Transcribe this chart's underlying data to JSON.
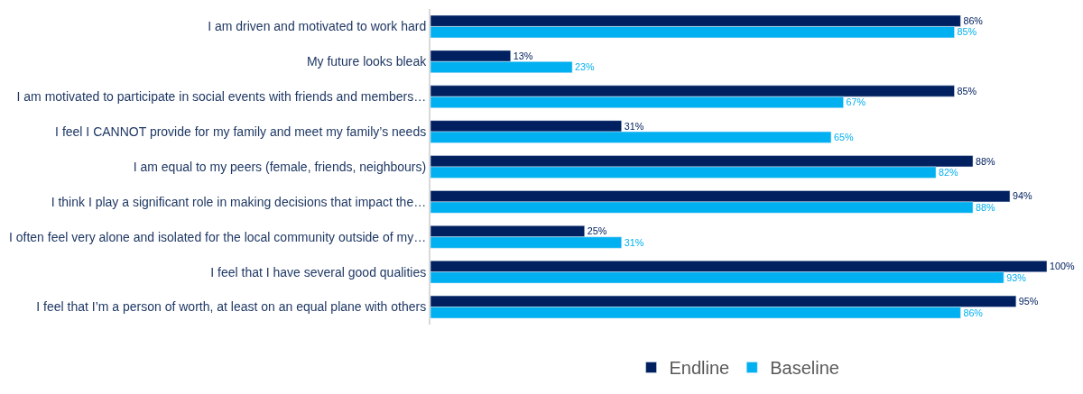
{
  "chart_data": {
    "type": "bar",
    "orientation": "horizontal",
    "categories": [
      "I am driven and motivated to work hard",
      "My future looks bleak",
      "I am motivated to participate in social events with friends and members…",
      "I feel I CANNOT provide for my family and meet my family’s needs",
      "I am equal to my peers (female, friends, neighbours)",
      "I think I play a significant role in making decisions that impact the…",
      "I often feel very alone and isolated for the local community outside of my…",
      "I feel that I have several good qualities",
      "I feel that I’m a person of worth, at least on an equal plane with others"
    ],
    "series": [
      {
        "name": "Endline",
        "color": "#002060",
        "values": [
          86,
          13,
          85,
          31,
          88,
          94,
          25,
          100,
          95
        ],
        "value_labels": [
          "86%",
          "13%",
          "85%",
          "31%",
          "88%",
          "94%",
          "25%",
          "100%",
          "95%"
        ]
      },
      {
        "name": "Baseline",
        "color": "#00b0f0",
        "values": [
          85,
          23,
          67,
          65,
          82,
          88,
          31,
          93,
          86
        ],
        "value_labels": [
          "85%",
          "23%",
          "67%",
          "65%",
          "82%",
          "88%",
          "31%",
          "93%",
          "86%"
        ]
      }
    ],
    "xlim": [
      0,
      100
    ],
    "tick_labels": "y",
    "legend": "bottom"
  }
}
